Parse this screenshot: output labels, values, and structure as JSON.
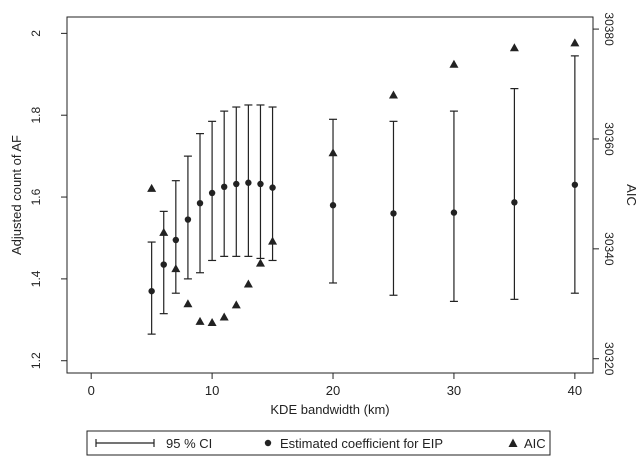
{
  "chart_data": {
    "type": "scatter",
    "title": "",
    "xlabel": "KDE bandwidth (km)",
    "ylabel_left": "Adjusted count of AF",
    "ylabel_right": "AIC",
    "xlim": [
      -2,
      41.5
    ],
    "ylim_left": [
      1.17,
      2.04
    ],
    "ylim_right": [
      30317.4,
      30382.2
    ],
    "x_ticks": [
      0,
      10,
      20,
      30,
      40
    ],
    "y_left_ticks": [
      1.2,
      1.4,
      1.6,
      1.8,
      2
    ],
    "y_right_ticks": [
      30320,
      30340,
      30360,
      30380
    ],
    "grid": false,
    "legend_position": "bottom",
    "legend": [
      "95 % CI",
      "Estimated coefficient for EIP",
      "AIC"
    ],
    "x": [
      5,
      6,
      7,
      8,
      9,
      10,
      11,
      12,
      13,
      14,
      15,
      20,
      25,
      30,
      35,
      40
    ],
    "series": [
      {
        "name": "95 % CI",
        "axis": "left",
        "low": [
          1.265,
          1.315,
          1.365,
          1.4,
          1.415,
          1.445,
          1.455,
          1.455,
          1.455,
          1.45,
          1.445,
          1.39,
          1.36,
          1.345,
          1.35,
          1.365
        ],
        "high": [
          1.49,
          1.565,
          1.64,
          1.7,
          1.755,
          1.785,
          1.81,
          1.82,
          1.825,
          1.825,
          1.82,
          1.79,
          1.785,
          1.81,
          1.865,
          1.945
        ]
      },
      {
        "name": "Estimated coefficient for EIP",
        "axis": "left",
        "values": [
          1.37,
          1.435,
          1.495,
          1.545,
          1.585,
          1.61,
          1.625,
          1.632,
          1.635,
          1.632,
          1.623,
          1.58,
          1.56,
          1.562,
          1.587,
          1.63
        ]
      },
      {
        "name": "AIC",
        "axis": "right",
        "values": [
          30351,
          30343,
          30336.4,
          30330,
          30326.8,
          30326.6,
          30327.6,
          30329.8,
          30333.6,
          30337.4,
          30341.4,
          30357.5,
          30368,
          30373.6,
          30376.6,
          30377.5
        ]
      }
    ]
  }
}
